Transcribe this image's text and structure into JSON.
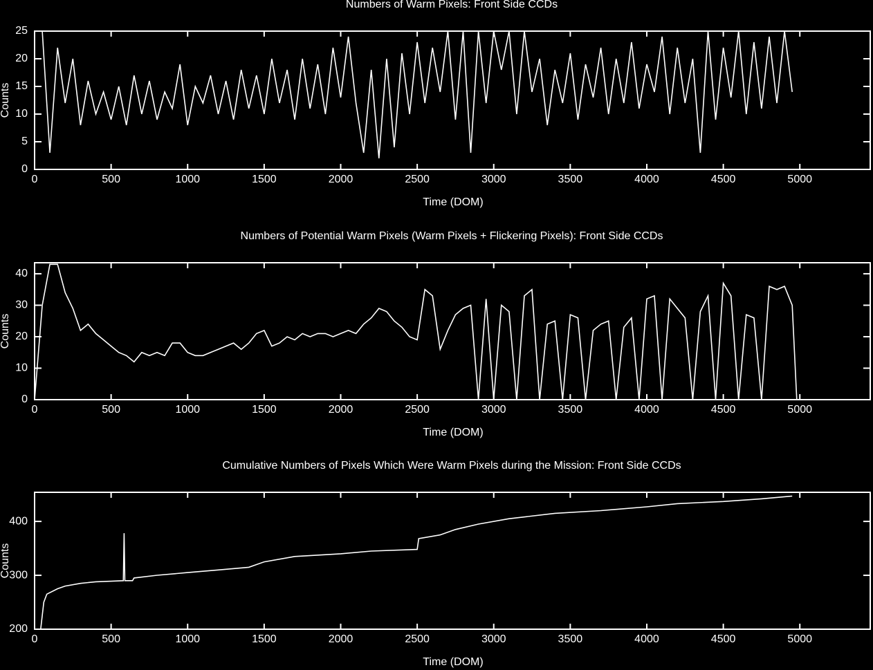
{
  "chart_data": [
    {
      "type": "line",
      "title": "Numbers of Warm Pixels: Front Side CCDs",
      "x_label": "Time (DOM)",
      "y_label": "Counts",
      "color": "#ffffff",
      "xlim": [
        0,
        5460
      ],
      "ylim": [
        0,
        25
      ],
      "xticks": [
        0,
        500,
        1000,
        1500,
        2000,
        2500,
        3000,
        3500,
        4000,
        4500,
        5000
      ],
      "yticks": [
        0,
        5,
        10,
        15,
        20,
        25
      ],
      "x": [
        50,
        100,
        150,
        200,
        250,
        300,
        350,
        400,
        450,
        500,
        550,
        600,
        650,
        700,
        750,
        800,
        850,
        900,
        950,
        1000,
        1050,
        1100,
        1150,
        1200,
        1250,
        1300,
        1350,
        1400,
        1450,
        1500,
        1550,
        1600,
        1650,
        1700,
        1750,
        1800,
        1850,
        1900,
        1950,
        2000,
        2050,
        2100,
        2150,
        2200,
        2250,
        2300,
        2350,
        2400,
        2450,
        2500,
        2550,
        2600,
        2650,
        2700,
        2750,
        2800,
        2850,
        2900,
        2950,
        3000,
        3050,
        3100,
        3150,
        3200,
        3250,
        3300,
        3350,
        3400,
        3450,
        3500,
        3550,
        3600,
        3650,
        3700,
        3750,
        3800,
        3850,
        3900,
        3950,
        4000,
        4050,
        4100,
        4150,
        4200,
        4250,
        4300,
        4350,
        4400,
        4450,
        4500,
        4550,
        4600,
        4650,
        4700,
        4750,
        4800,
        4850,
        4900,
        4950
      ],
      "values": [
        25,
        3,
        22,
        12,
        20,
        8,
        16,
        10,
        14,
        9,
        15,
        8,
        17,
        10,
        16,
        9,
        14,
        11,
        19,
        8,
        15,
        12,
        17,
        10,
        16,
        9,
        18,
        11,
        17,
        10,
        20,
        12,
        18,
        9,
        20,
        11,
        19,
        10,
        22,
        13,
        24,
        12,
        3,
        18,
        2,
        20,
        4,
        21,
        10,
        23,
        12,
        22,
        14,
        25,
        9,
        25,
        3,
        25,
        12,
        25,
        18,
        25,
        10,
        25,
        14,
        20,
        8,
        18,
        12,
        21,
        9,
        19,
        13,
        22,
        10,
        20,
        12,
        23,
        11,
        19,
        14,
        24,
        10,
        22,
        12,
        20,
        3,
        25,
        9,
        22,
        13,
        25,
        10,
        23,
        11,
        24,
        12,
        25,
        14
      ]
    },
    {
      "type": "line",
      "title": "Numbers of Potential Warm Pixels (Warm Pixels + Flickering Pixels): Front Side CCDs",
      "x_label": "Time (DOM)",
      "y_label": "Counts",
      "color": "#ffffff",
      "xlim": [
        0,
        5460
      ],
      "ylim": [
        0,
        43.5
      ],
      "xticks": [
        0,
        500,
        1000,
        1500,
        2000,
        2500,
        3000,
        3500,
        4000,
        4500,
        5000
      ],
      "yticks": [
        0,
        10,
        20,
        30,
        40
      ],
      "x": [
        0,
        50,
        100,
        150,
        200,
        250,
        300,
        350,
        400,
        450,
        500,
        550,
        600,
        650,
        700,
        750,
        800,
        850,
        900,
        950,
        1000,
        1050,
        1100,
        1150,
        1200,
        1250,
        1300,
        1350,
        1400,
        1450,
        1500,
        1550,
        1600,
        1650,
        1700,
        1750,
        1800,
        1850,
        1900,
        1950,
        2000,
        2050,
        2100,
        2150,
        2200,
        2250,
        2300,
        2350,
        2400,
        2450,
        2500,
        2550,
        2600,
        2650,
        2700,
        2750,
        2800,
        2850,
        2900,
        2950,
        3000,
        3050,
        3100,
        3150,
        3200,
        3250,
        3300,
        3350,
        3400,
        3450,
        3500,
        3550,
        3600,
        3650,
        3700,
        3750,
        3800,
        3850,
        3900,
        3950,
        4000,
        4050,
        4100,
        4150,
        4200,
        4250,
        4300,
        4350,
        4400,
        4450,
        4500,
        4550,
        4600,
        4650,
        4700,
        4750,
        4800,
        4850,
        4900,
        4950,
        4980
      ],
      "values": [
        0,
        30,
        43,
        43,
        34,
        29,
        22,
        24,
        21,
        19,
        17,
        15,
        14,
        12,
        15,
        14,
        15,
        14,
        18,
        18,
        15,
        14,
        14,
        15,
        16,
        17,
        18,
        16,
        18,
        21,
        22,
        17,
        18,
        20,
        19,
        21,
        20,
        21,
        21,
        20,
        21,
        22,
        21,
        24,
        26,
        29,
        28,
        25,
        23,
        20,
        19,
        35,
        33,
        16,
        22,
        27,
        29,
        30,
        0,
        32,
        0,
        30,
        28,
        0,
        33,
        35,
        0,
        24,
        25,
        0,
        27,
        26,
        0,
        22,
        24,
        25,
        0,
        23,
        26,
        0,
        32,
        33,
        0,
        32,
        29,
        26,
        0,
        28,
        33,
        0,
        37,
        33,
        0,
        27,
        26,
        0,
        36,
        35,
        36,
        30,
        0
      ]
    },
    {
      "type": "line",
      "title": "Cumulative Numbers of Pixels Which Were Warm Pixels during the Mission: Front Side CCDs",
      "x_label": "Time (DOM)",
      "y_label": "Counts",
      "color": "#ffffff",
      "xlim": [
        0,
        5460
      ],
      "ylim": [
        200,
        454
      ],
      "xticks": [
        0,
        500,
        1000,
        1500,
        2000,
        2500,
        3000,
        3500,
        4000,
        4500,
        5000
      ],
      "yticks": [
        200,
        300,
        400
      ],
      "x": [
        40,
        60,
        80,
        150,
        200,
        300,
        400,
        500,
        580,
        585,
        590,
        640,
        650,
        800,
        1000,
        1200,
        1400,
        1500,
        1700,
        2000,
        2200,
        2500,
        2510,
        2650,
        2750,
        2900,
        3100,
        3400,
        3700,
        4000,
        4200,
        4500,
        4750,
        4950
      ],
      "values": [
        200,
        250,
        265,
        275,
        280,
        285,
        288,
        289,
        290,
        378,
        290,
        290,
        295,
        300,
        305,
        310,
        315,
        325,
        335,
        340,
        345,
        348,
        368,
        375,
        385,
        395,
        405,
        415,
        420,
        427,
        433,
        437,
        442,
        447
      ]
    }
  ]
}
